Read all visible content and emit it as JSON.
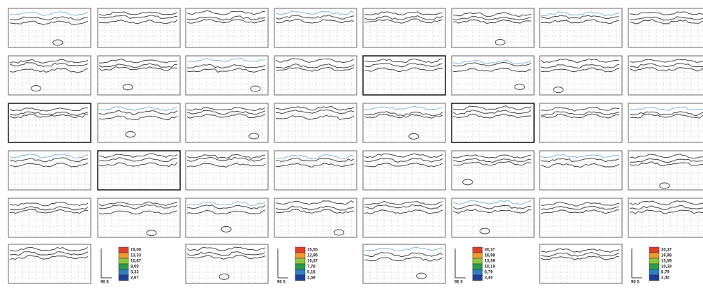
{
  "legends": [
    {
      "labels": [
        "16,00",
        "13,33",
        "10,67",
        "8,00",
        "5,33",
        "2,67"
      ],
      "axis_label": "90 5"
    },
    {
      "labels": [
        "15,55",
        "12,96",
        "10,37",
        "7,78",
        "5,18",
        "2,59"
      ],
      "axis_label": "90 5"
    },
    {
      "labels": [
        "20,37",
        "16,98",
        "13,59",
        "10,19",
        "6,79",
        "3,40"
      ],
      "axis_label": "90 5"
    },
    {
      "labels": [
        "20,37",
        "16,98",
        "13,59",
        "10,19",
        "6,79",
        "3,40"
      ],
      "axis_label": "90 5"
    }
  ]
}
